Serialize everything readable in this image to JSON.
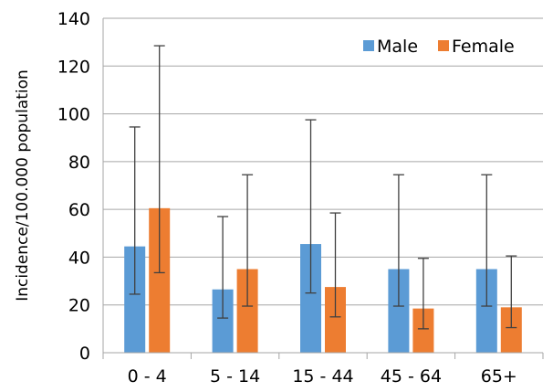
{
  "chart_data": {
    "type": "bar",
    "title": "",
    "xlabel": "",
    "ylabel": "Incidence/100.000 population",
    "ylim": [
      0,
      140
    ],
    "yticks": [
      0,
      20,
      40,
      60,
      80,
      100,
      120,
      140
    ],
    "grid": "horizontal",
    "legend_position": "top-right",
    "categories": [
      "0 - 4",
      "5 - 14",
      "15 - 44",
      "45 - 64",
      "65+"
    ],
    "series": [
      {
        "name": "Male",
        "color": "#5b9bd5",
        "values": [
          44.5,
          26.5,
          45.5,
          35,
          35
        ],
        "error_low": [
          24.5,
          14.5,
          25,
          19.5,
          19.5
        ],
        "error_high": [
          94.5,
          57,
          97.5,
          74.5,
          74.5
        ]
      },
      {
        "name": "Female",
        "color": "#ed7d31",
        "values": [
          60.5,
          35,
          27.5,
          18.5,
          19
        ],
        "error_low": [
          33.5,
          19.5,
          15,
          10,
          10.5
        ],
        "error_high": [
          128.5,
          74.5,
          58.5,
          39.5,
          40.5
        ]
      }
    ]
  }
}
